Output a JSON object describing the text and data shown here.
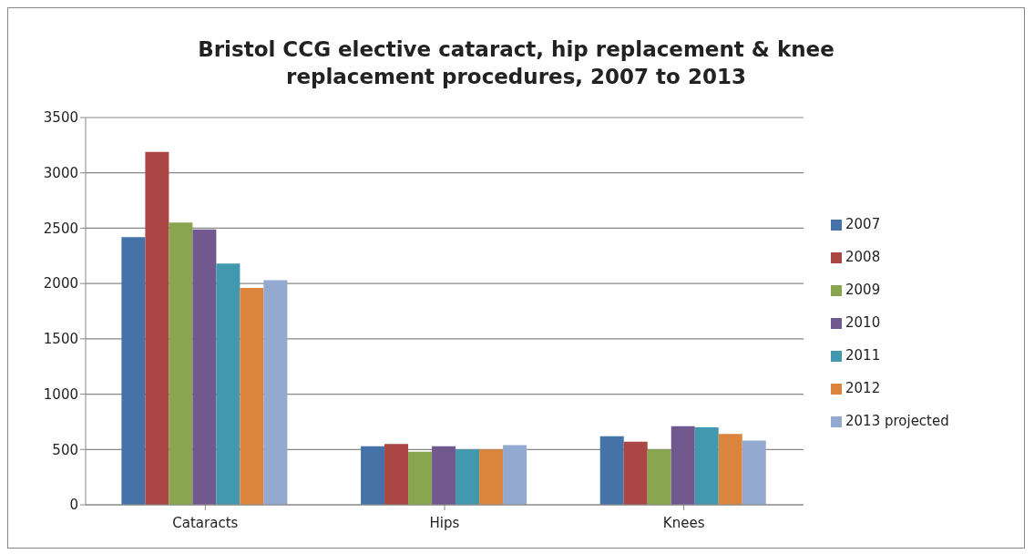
{
  "chart_data": {
    "type": "bar",
    "title": "Bristol CCG elective cataract, hip replacement & knee replacement procedures, 2007 to 2013",
    "categories": [
      "Cataracts",
      "Hips",
      "Knees"
    ],
    "series": [
      {
        "name": "2007",
        "color": "#4572a7",
        "values": [
          2420,
          530,
          620
        ]
      },
      {
        "name": "2008",
        "color": "#aa4643",
        "values": [
          3190,
          550,
          570
        ]
      },
      {
        "name": "2009",
        "color": "#89a54e",
        "values": [
          2550,
          480,
          500
        ]
      },
      {
        "name": "2010",
        "color": "#71588f",
        "values": [
          2490,
          530,
          710
        ]
      },
      {
        "name": "2011",
        "color": "#4198af",
        "values": [
          2180,
          500,
          700
        ]
      },
      {
        "name": "2012",
        "color": "#db843d",
        "values": [
          1960,
          500,
          640
        ]
      },
      {
        "name": "2013 projected",
        "color": "#93a9cf",
        "values": [
          2030,
          540,
          580
        ]
      }
    ],
    "ylim": [
      0,
      3500
    ],
    "yticks": [
      0,
      500,
      1000,
      1500,
      2000,
      2500,
      3000,
      3500
    ],
    "grid": "y",
    "legend": "right"
  }
}
